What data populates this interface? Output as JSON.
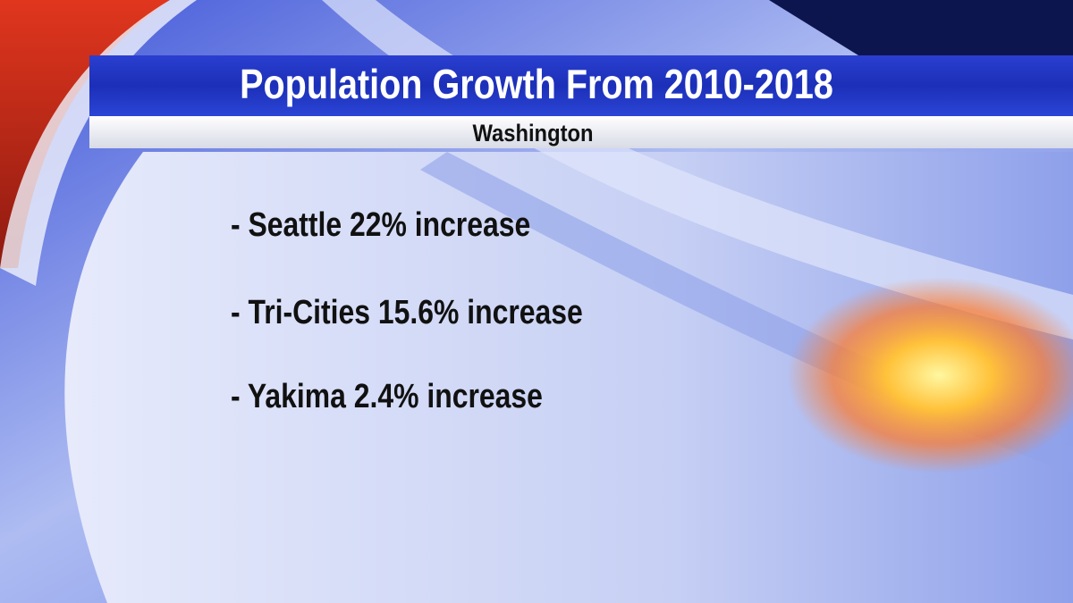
{
  "header": {
    "title": "Population Growth From 2010-2018",
    "subtitle": "Washington"
  },
  "items": [
    "- Seattle 22% increase",
    "- Tri-Cities 15.6% increase",
    "- Yakima 2.4% increase"
  ]
}
